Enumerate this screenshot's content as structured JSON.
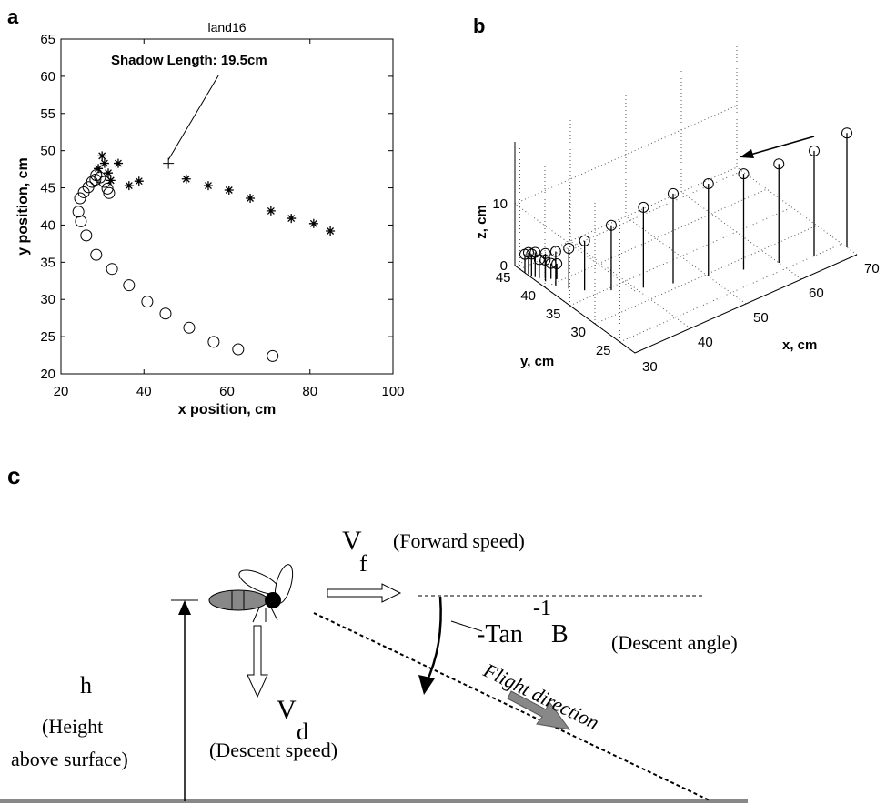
{
  "panel_labels": [
    "a",
    "b",
    "c"
  ],
  "chart_data": [
    {
      "type": "scatter",
      "title": "land16",
      "xlabel": "x position, cm",
      "ylabel": "y position, cm",
      "xlim": [
        20,
        100
      ],
      "ylim": [
        20,
        65
      ],
      "xticks": [
        20,
        40,
        60,
        80,
        100
      ],
      "yticks": [
        20,
        25,
        30,
        35,
        40,
        45,
        50,
        55,
        60,
        65
      ],
      "color": "#000000",
      "series": [
        {
          "marker": "circle",
          "x": [
            71,
            62.7,
            56.8,
            50.9,
            45.2,
            40.8,
            36.4,
            32.3,
            28.5,
            26.1,
            24.8,
            24.2,
            24.6,
            25.5,
            26.6,
            27.5,
            28.3,
            28.5,
            29.4,
            30.5,
            31.2,
            31.6
          ],
          "y": [
            22.4,
            23.3,
            24.3,
            26.2,
            28.1,
            29.7,
            31.9,
            34.1,
            36,
            38.6,
            40.5,
            41.8,
            43.6,
            44.4,
            45.1,
            45.8,
            46.1,
            46.7,
            46.4,
            45.8,
            44.9,
            44.3
          ]
        },
        {
          "marker": "star",
          "x": [
            84.9,
            80.9,
            75.5,
            70.6,
            65.6,
            60.5,
            55.5,
            50.2,
            38.8,
            36.4,
            33.8,
            32,
            31.4,
            30.5,
            29.9,
            29
          ],
          "y": [
            39.2,
            40.2,
            40.9,
            41.9,
            43.6,
            44.7,
            45.3,
            46.2,
            45.9,
            45.3,
            48.3,
            46,
            47,
            48.3,
            49.3,
            47.6
          ]
        }
      ],
      "annotation": {
        "text": "Shadow Length: 19.5cm",
        "x": 45.9,
        "y": 48.3
      }
    },
    {
      "type": "stem3d",
      "xlabel": "x, cm",
      "ylabel": "y, cm",
      "zlabel": "z, cm",
      "xlim": [
        30,
        70
      ],
      "ylim": [
        22,
        46
      ],
      "zlim": [
        0,
        20
      ],
      "xticks": [
        30,
        40,
        50,
        60,
        70
      ],
      "yticks": [
        25,
        30,
        35,
        40,
        45
      ],
      "zticks": [
        0,
        10
      ],
      "color": "#000000",
      "series": [
        {
          "marker": "circle",
          "x": [
            70,
            65,
            60,
            55,
            50,
            45,
            41,
            37,
            34,
            32.5,
            31.5,
            31,
            30.5,
            30.2,
            30,
            30.3,
            30.8,
            31.4,
            32,
            32.6
          ],
          "y": [
            24,
            25,
            26.5,
            28,
            29.5,
            31,
            32.5,
            34.5,
            36.5,
            38,
            39.5,
            41,
            42.5,
            43.5,
            44,
            43,
            42,
            41.5,
            41,
            40.5
          ],
          "z": [
            18.5,
            17,
            16,
            15.5,
            15,
            14.5,
            13,
            10.5,
            8,
            6.5,
            5.5,
            4.5,
            4,
            3.5,
            3,
            3.5,
            3,
            3,
            2.5,
            2.5
          ]
        }
      ]
    }
  ],
  "diagram": {
    "vf": "V",
    "vf_sub": "f",
    "forward": "(Forward speed)",
    "tan": "-Tan",
    "tan_sup": "-1",
    "tan_b": "B",
    "angle": "(Descent angle)",
    "vd": "V",
    "vd_sub": "d",
    "descent": "(Descent speed)",
    "h": "h",
    "height1": "(Height",
    "height2": "above surface)",
    "flight": "Flight direction"
  }
}
